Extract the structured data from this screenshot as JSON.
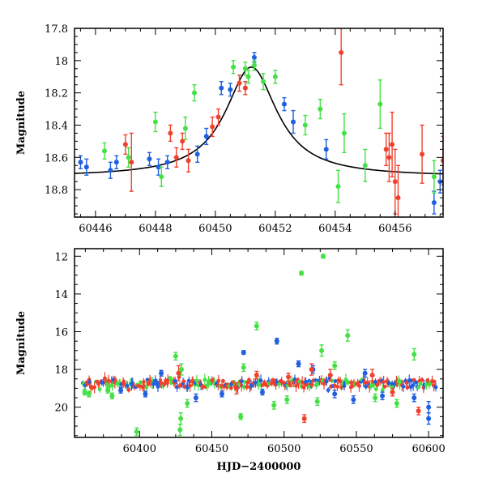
{
  "chart_data": [
    {
      "type": "scatter",
      "title": "",
      "xlabel": "",
      "ylabel": "Magnitude",
      "xlim": [
        60445.3,
        60457.6
      ],
      "ylim": [
        18.97,
        17.8
      ],
      "y_inverted": true,
      "xticks": [
        60446,
        60448,
        60450,
        60452,
        60454,
        60456
      ],
      "xtick_labels": [
        "60446",
        "60448",
        "60450",
        "60452",
        "60454",
        "60456"
      ],
      "yticks": [
        17.8,
        18,
        18.2,
        18.4,
        18.6,
        18.8
      ],
      "ytick_labels": [
        "17.8",
        "18",
        "18.2",
        "18.4",
        "18.6",
        "18.8"
      ],
      "colors": {
        "blue": "#1f5fe0",
        "green": "#44e044",
        "red": "#f0402e",
        "model": "#000000"
      },
      "series": [
        {
          "color": "blue",
          "points": [
            {
              "x": 60445.5,
              "y": 18.63,
              "err": 0.04
            },
            {
              "x": 60445.7,
              "y": 18.66,
              "err": 0.05
            },
            {
              "x": 60446.5,
              "y": 18.68,
              "err": 0.05
            },
            {
              "x": 60446.7,
              "y": 18.63,
              "err": 0.04
            },
            {
              "x": 60447.8,
              "y": 18.61,
              "err": 0.04
            },
            {
              "x": 60448.1,
              "y": 18.66,
              "err": 0.05
            },
            {
              "x": 60448.4,
              "y": 18.63,
              "err": 0.04
            },
            {
              "x": 60449.4,
              "y": 18.58,
              "err": 0.05
            },
            {
              "x": 60449.7,
              "y": 18.47,
              "err": 0.05
            },
            {
              "x": 60450.2,
              "y": 18.17,
              "err": 0.04
            },
            {
              "x": 60450.5,
              "y": 18.18,
              "err": 0.04
            },
            {
              "x": 60451.3,
              "y": 17.98,
              "err": 0.03
            },
            {
              "x": 60452.3,
              "y": 18.27,
              "err": 0.04
            },
            {
              "x": 60452.6,
              "y": 18.38,
              "err": 0.07
            },
            {
              "x": 60453.7,
              "y": 18.55,
              "err": 0.06
            },
            {
              "x": 60457.3,
              "y": 18.88,
              "err": 0.07
            },
            {
              "x": 60457.5,
              "y": 18.75,
              "err": 0.07
            }
          ]
        },
        {
          "color": "green",
          "points": [
            {
              "x": 60446.3,
              "y": 18.56,
              "err": 0.05
            },
            {
              "x": 60447.1,
              "y": 18.6,
              "err": 0.06
            },
            {
              "x": 60448.0,
              "y": 18.38,
              "err": 0.06
            },
            {
              "x": 60448.2,
              "y": 18.72,
              "err": 0.06
            },
            {
              "x": 60449.0,
              "y": 18.42,
              "err": 0.07
            },
            {
              "x": 60449.3,
              "y": 18.2,
              "err": 0.05
            },
            {
              "x": 60450.6,
              "y": 18.04,
              "err": 0.04
            },
            {
              "x": 60451.0,
              "y": 18.05,
              "err": 0.04
            },
            {
              "x": 60451.1,
              "y": 18.1,
              "err": 0.04
            },
            {
              "x": 60451.3,
              "y": 18.03,
              "err": 0.03
            },
            {
              "x": 60451.6,
              "y": 18.13,
              "err": 0.05
            },
            {
              "x": 60452.0,
              "y": 18.1,
              "err": 0.04
            },
            {
              "x": 60453.0,
              "y": 18.4,
              "err": 0.06
            },
            {
              "x": 60453.5,
              "y": 18.3,
              "err": 0.06
            },
            {
              "x": 60454.1,
              "y": 18.78,
              "err": 0.1
            },
            {
              "x": 60454.3,
              "y": 18.45,
              "err": 0.12
            },
            {
              "x": 60455.0,
              "y": 18.65,
              "err": 0.1
            },
            {
              "x": 60455.5,
              "y": 18.27,
              "err": 0.15
            },
            {
              "x": 60457.3,
              "y": 18.72,
              "err": 0.1
            }
          ]
        },
        {
          "color": "red",
          "points": [
            {
              "x": 60447.0,
              "y": 18.52,
              "err": 0.06
            },
            {
              "x": 60447.2,
              "y": 18.63,
              "err": 0.18
            },
            {
              "x": 60448.5,
              "y": 18.45,
              "err": 0.05
            },
            {
              "x": 60448.7,
              "y": 18.6,
              "err": 0.06
            },
            {
              "x": 60448.9,
              "y": 18.5,
              "err": 0.05
            },
            {
              "x": 60449.1,
              "y": 18.62,
              "err": 0.07
            },
            {
              "x": 60449.9,
              "y": 18.41,
              "err": 0.06
            },
            {
              "x": 60450.1,
              "y": 18.35,
              "err": 0.05
            },
            {
              "x": 60450.8,
              "y": 18.14,
              "err": 0.05
            },
            {
              "x": 60451.0,
              "y": 18.17,
              "err": 0.04
            },
            {
              "x": 60454.2,
              "y": 17.95,
              "err": 0.2
            },
            {
              "x": 60455.7,
              "y": 18.55,
              "err": 0.1
            },
            {
              "x": 60455.8,
              "y": 18.6,
              "err": 0.15
            },
            {
              "x": 60455.9,
              "y": 18.52,
              "err": 0.2
            },
            {
              "x": 60456.0,
              "y": 18.75,
              "err": 0.2
            },
            {
              "x": 60456.1,
              "y": 18.85,
              "err": 0.2
            },
            {
              "x": 60456.9,
              "y": 18.58,
              "err": 0.18
            },
            {
              "x": 60457.6,
              "y": 18.62,
              "err": 0.15
            }
          ]
        }
      ],
      "model_curve": {
        "baseline": 18.72,
        "peak": 18.04,
        "t0": 60451.2,
        "width": 1.05,
        "shape": "lorentzian"
      }
    },
    {
      "type": "scatter",
      "title": "",
      "xlabel": "HJD−2400000",
      "ylabel": "Magnitude",
      "xlim": [
        60355,
        60610
      ],
      "ylim": [
        21.6,
        11.6
      ],
      "y_inverted": true,
      "xticks": [
        60400,
        60450,
        60500,
        60550,
        60600
      ],
      "xtick_labels": [
        "60400",
        "60450",
        "60500",
        "60550",
        "60600"
      ],
      "yticks": [
        12,
        14,
        16,
        18,
        20
      ],
      "ytick_labels": [
        "12",
        "14",
        "16",
        "18",
        "20"
      ],
      "colors": {
        "blue": "#1f5fe0",
        "green": "#44e044",
        "red": "#f0402e"
      },
      "baseline_band": {
        "center": 18.75,
        "spread": 0.35,
        "x_range": [
          60360,
          60605
        ]
      },
      "series": [
        {
          "color": "green",
          "points": [
            {
              "x": 60398,
              "y": 21.3,
              "err": 0.2
            },
            {
              "x": 60425,
              "y": 17.3,
              "err": 0.2
            },
            {
              "x": 60428,
              "y": 21.2,
              "err": 0.3
            },
            {
              "x": 60428.5,
              "y": 20.6,
              "err": 0.3
            },
            {
              "x": 60429,
              "y": 18.0,
              "err": 0.3
            },
            {
              "x": 60433,
              "y": 19.8,
              "err": 0.2
            },
            {
              "x": 60470,
              "y": 20.5,
              "err": 0.15
            },
            {
              "x": 60481,
              "y": 15.7,
              "err": 0.2
            },
            {
              "x": 60493,
              "y": 19.9,
              "err": 0.2
            },
            {
              "x": 60512,
              "y": 12.9,
              "err": 0.1
            },
            {
              "x": 60523,
              "y": 19.7,
              "err": 0.2
            },
            {
              "x": 60526,
              "y": 17.0,
              "err": 0.3
            },
            {
              "x": 60527,
              "y": 12.0,
              "err": 0.1
            },
            {
              "x": 60544,
              "y": 16.2,
              "err": 0.3
            },
            {
              "x": 60590,
              "y": 17.2,
              "err": 0.3
            },
            {
              "x": 60362,
              "y": 19.2,
              "err": 0.15
            },
            {
              "x": 60365,
              "y": 19.3,
              "err": 0.15
            },
            {
              "x": 60378,
              "y": 19.1,
              "err": 0.15
            },
            {
              "x": 60381,
              "y": 19.4,
              "err": 0.15
            },
            {
              "x": 60472,
              "y": 17.9,
              "err": 0.2
            },
            {
              "x": 60502,
              "y": 19.6,
              "err": 0.2
            },
            {
              "x": 60535,
              "y": 17.8,
              "err": 0.2
            },
            {
              "x": 60563,
              "y": 19.5,
              "err": 0.2
            },
            {
              "x": 60578,
              "y": 19.8,
              "err": 0.2
            }
          ]
        },
        {
          "color": "blue",
          "points": [
            {
              "x": 60472,
              "y": 17.1,
              "err": 0.1
            },
            {
              "x": 60495,
              "y": 16.5,
              "err": 0.15
            },
            {
              "x": 60510,
              "y": 17.7,
              "err": 0.15
            },
            {
              "x": 60535,
              "y": 19.3,
              "err": 0.2
            },
            {
              "x": 60548,
              "y": 19.6,
              "err": 0.2
            },
            {
              "x": 60568,
              "y": 19.4,
              "err": 0.2
            },
            {
              "x": 60590,
              "y": 19.5,
              "err": 0.2
            },
            {
              "x": 60600,
              "y": 20.0,
              "err": 0.3
            },
            {
              "x": 60600,
              "y": 20.6,
              "err": 0.3
            },
            {
              "x": 60387,
              "y": 19.1,
              "err": 0.15
            },
            {
              "x": 60404,
              "y": 19.3,
              "err": 0.15
            },
            {
              "x": 60415,
              "y": 18.2,
              "err": 0.15
            },
            {
              "x": 60439,
              "y": 19.5,
              "err": 0.2
            },
            {
              "x": 60457,
              "y": 19.3,
              "err": 0.15
            },
            {
              "x": 60485,
              "y": 19.2,
              "err": 0.15
            },
            {
              "x": 60520,
              "y": 18.0,
              "err": 0.2
            },
            {
              "x": 60556,
              "y": 18.2,
              "err": 0.2
            }
          ]
        },
        {
          "color": "red",
          "points": [
            {
              "x": 60481,
              "y": 18.3,
              "err": 0.2
            },
            {
              "x": 60503,
              "y": 18.4,
              "err": 0.2
            },
            {
              "x": 60514,
              "y": 20.6,
              "err": 0.2
            },
            {
              "x": 60519,
              "y": 18.0,
              "err": 0.3
            },
            {
              "x": 60593,
              "y": 20.2,
              "err": 0.2
            },
            {
              "x": 60427,
              "y": 18.2,
              "err": 0.4
            },
            {
              "x": 60467,
              "y": 19.0,
              "err": 0.3
            },
            {
              "x": 60532,
              "y": 18.3,
              "err": 0.3
            },
            {
              "x": 60561,
              "y": 18.3,
              "err": 0.3
            },
            {
              "x": 60575,
              "y": 19.2,
              "err": 0.2
            }
          ]
        }
      ]
    }
  ]
}
